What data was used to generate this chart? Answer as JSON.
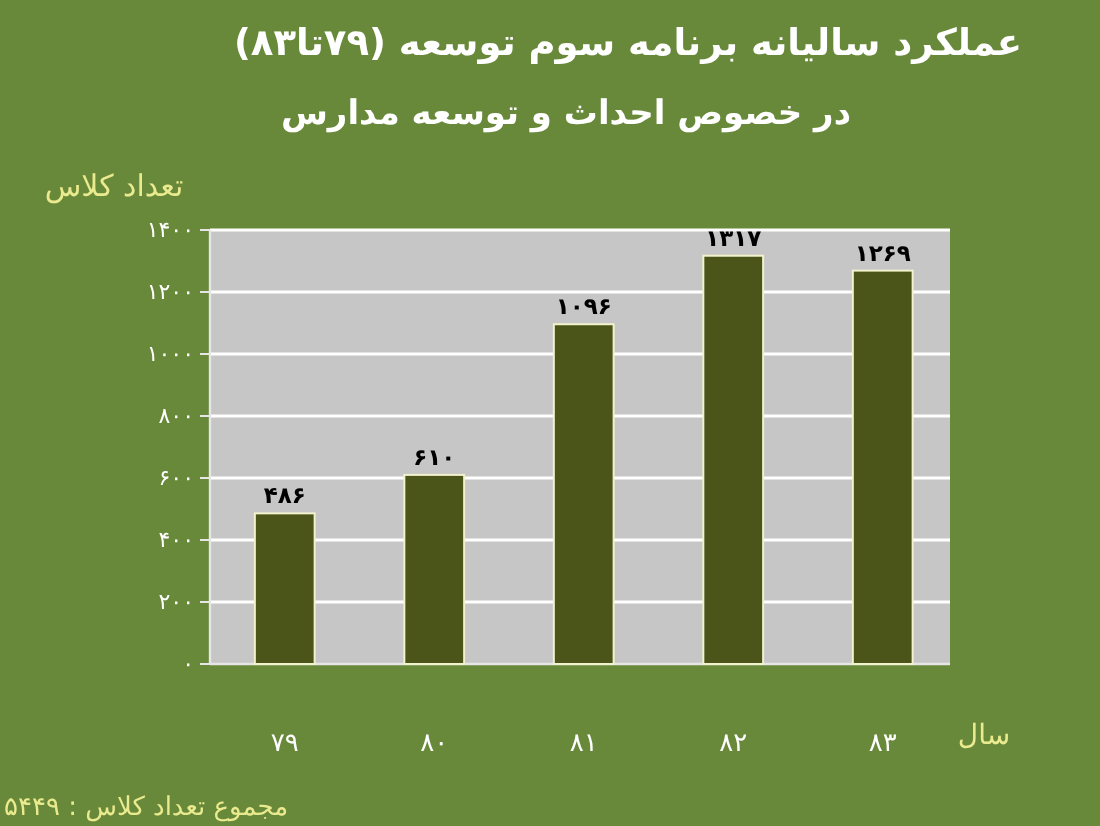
{
  "chart_data": {
    "type": "bar",
    "title": "عملکرد سالیانه برنامه سوم توسعه (۷۹تا۸۳)",
    "subtitle": "در خصوص احداث و توسعه مدارس",
    "xlabel": "سال",
    "ylabel": "تعداد کلاس",
    "categories": [
      "۷۹",
      "۸۰",
      "۸۱",
      "۸۲",
      "۸۳"
    ],
    "values": [
      486,
      610,
      1096,
      1317,
      1269
    ],
    "value_labels": [
      "۴۸۶",
      "۶۱۰",
      "۱۰۹۶",
      "۱۳۱۷",
      "۱۲۶۹"
    ],
    "color": "#4b5519",
    "ylim": [
      0,
      1400
    ],
    "yticks": [
      {
        "value": 0,
        "label": "۰"
      },
      {
        "value": 200,
        "label": "۲۰۰"
      },
      {
        "value": 400,
        "label": "۴۰۰"
      },
      {
        "value": 600,
        "label": "۶۰۰"
      },
      {
        "value": 800,
        "label": "۸۰۰"
      },
      {
        "value": 1000,
        "label": "۱۰۰۰"
      },
      {
        "value": 1200,
        "label": "۱۲۰۰"
      },
      {
        "value": 1400,
        "label": "۱۴۰۰"
      }
    ],
    "grid": "y",
    "annotations": [
      "مجموع تعداد کلاس : ۵۴۴۹"
    ]
  }
}
